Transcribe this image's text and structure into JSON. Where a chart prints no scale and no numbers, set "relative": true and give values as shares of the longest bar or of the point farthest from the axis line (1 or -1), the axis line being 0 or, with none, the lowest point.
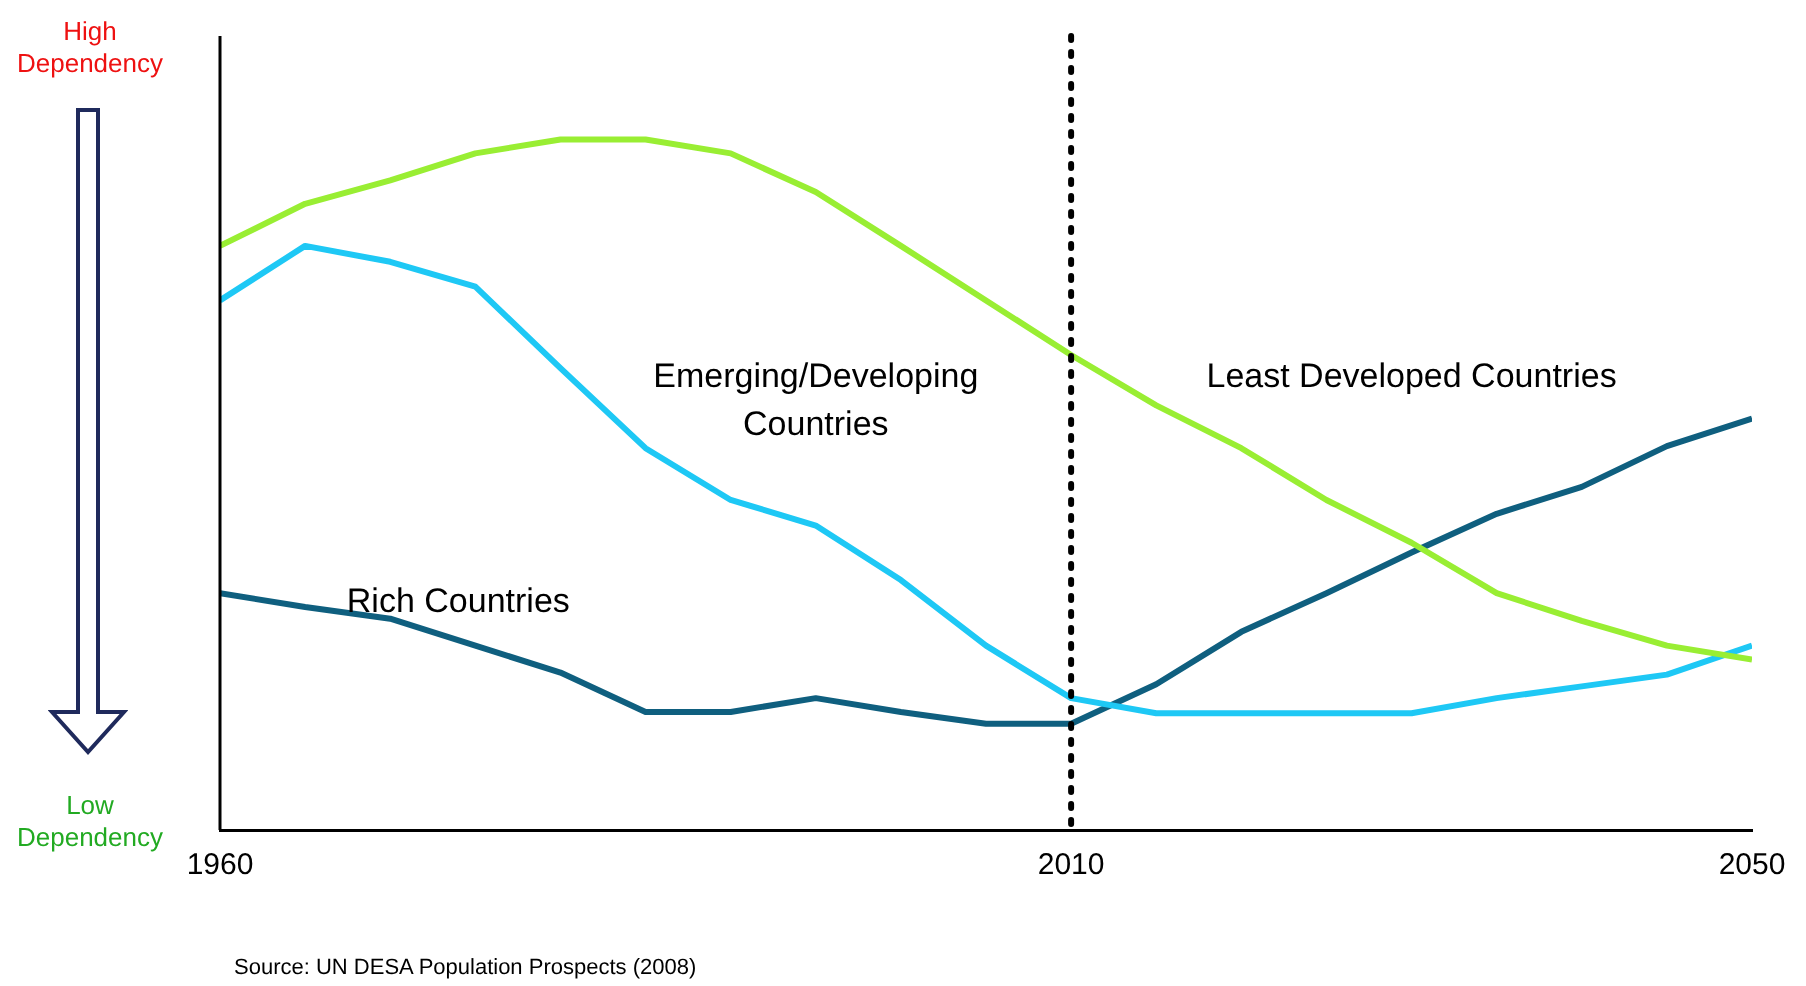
{
  "chart_data": {
    "type": "line",
    "relative": true,
    "x": [
      1960,
      1965,
      1970,
      1975,
      1980,
      1985,
      1990,
      1995,
      2000,
      2005,
      2010,
      2015,
      2020,
      2025,
      2030,
      2035,
      2040,
      2045,
      2050
    ],
    "xlim": [
      1960,
      2050
    ],
    "xticks": [
      1960,
      2010,
      2050
    ],
    "series": [
      {
        "name": "Least Developed Countries",
        "color": "#99ee33",
        "values": [
          0.846,
          0.907,
          0.941,
          0.98,
          1,
          1,
          0.98,
          0.924,
          0.846,
          0.767,
          0.688,
          0.615,
          0.553,
          0.478,
          0.416,
          0.343,
          0.303,
          0.267,
          0.247
        ]
      },
      {
        "name": "Emerging/Developing Countries",
        "color": "#1ec8f5",
        "values": [
          0.767,
          0.846,
          0.823,
          0.787,
          0.669,
          0.553,
          0.478,
          0.441,
          0.362,
          0.267,
          0.191,
          0.169,
          0.169,
          0.169,
          0.169,
          0.191,
          0.208,
          0.225,
          0.267
        ]
      },
      {
        "name": "Rich Countries",
        "color": "#0f5f7f",
        "values": [
          0.343,
          0.323,
          0.306,
          0.267,
          0.228,
          0.171,
          0.171,
          0.191,
          0.171,
          0.154,
          0.154,
          0.211,
          0.287,
          0.343,
          0.402,
          0.458,
          0.497,
          0.556,
          0.596
        ]
      }
    ],
    "ref_lines": [
      {
        "axis": "x",
        "value": 2010,
        "color": "#000000",
        "line_style": "dotted"
      }
    ],
    "annotations": [
      "High Dependency",
      "Low Dependency",
      "Source: UN DESA Population Prospects (2008)"
    ],
    "grid": false,
    "legend": false,
    "marker": "none",
    "line_style": "solid"
  }
}
